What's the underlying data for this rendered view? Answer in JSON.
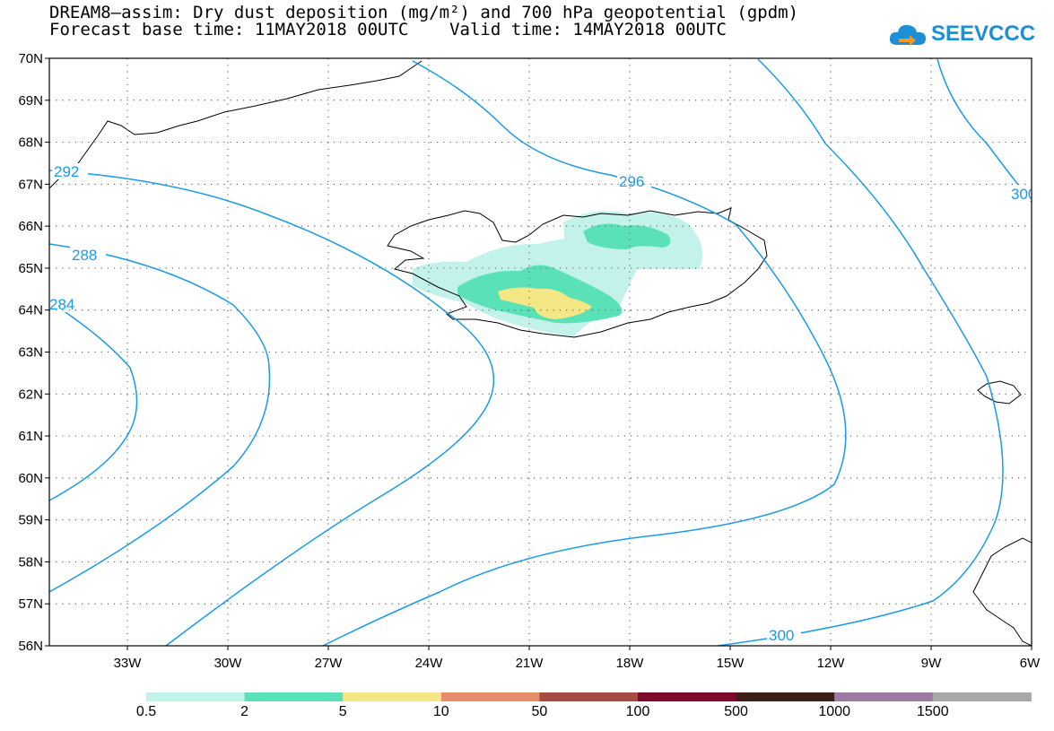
{
  "title_line1": "DREAM8–assim: Dry dust deposition (mg/m²) and 700 hPa geopotential (gpdm)",
  "title_line2": "Forecast base time: 11MAY2018 00UTC    Valid time: 14MAY2018 00UTC",
  "logo_text": "SEEVCCC",
  "map": {
    "lat_labels": [
      "70N",
      "69N",
      "68N",
      "67N",
      "66N",
      "65N",
      "64N",
      "63N",
      "62N",
      "61N",
      "60N",
      "59N",
      "58N",
      "57N",
      "56N"
    ],
    "lon_labels": [
      "33W",
      "30W",
      "27W",
      "24W",
      "21W",
      "18W",
      "15W",
      "12W",
      "9W",
      "6W"
    ],
    "contour_labels": [
      "292",
      "288",
      "284",
      "296",
      "300",
      "300"
    ],
    "contour_color": "#1a9be6"
  },
  "legend": {
    "colors": [
      "#c2f2ea",
      "#5be1b8",
      "#f4e884",
      "#e88e6c",
      "#a84a44",
      "#7e0a2c",
      "#3c2216",
      "#9d79a4",
      "#a8a8a8"
    ],
    "labels": [
      "0.5",
      "2",
      "5",
      "10",
      "50",
      "100",
      "500",
      "1000",
      "1500"
    ]
  }
}
